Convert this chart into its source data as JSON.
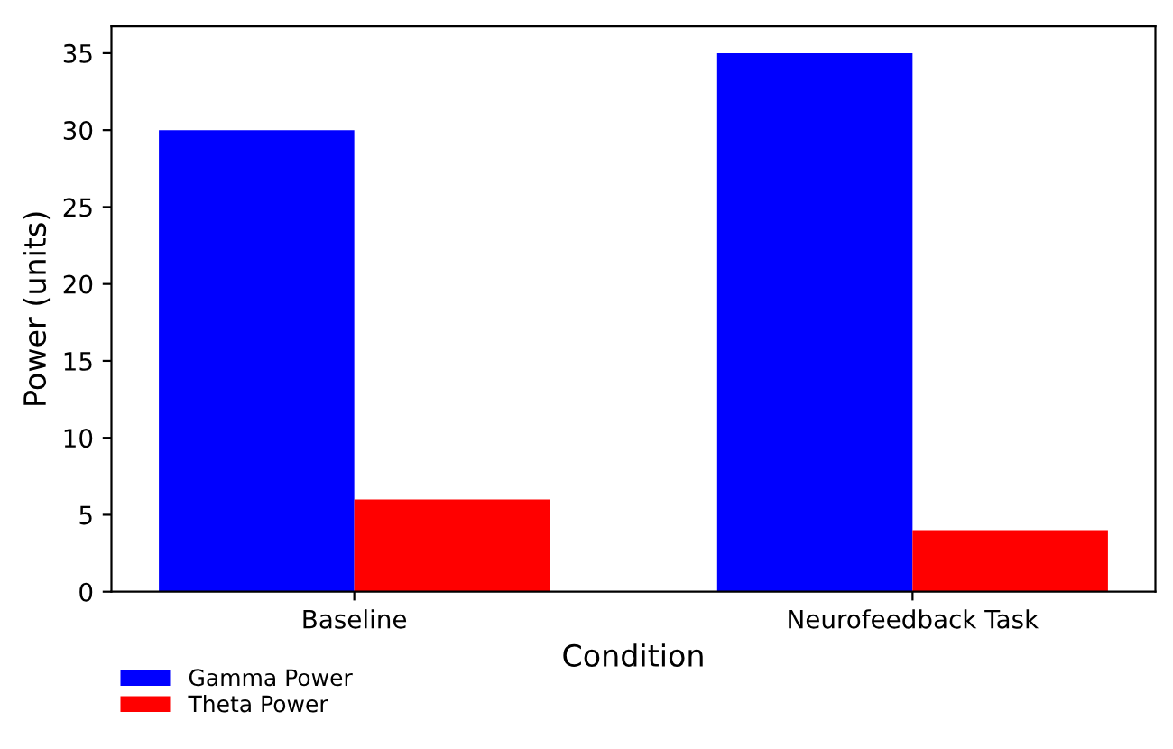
{
  "chart_data": {
    "type": "bar",
    "xlabel": "Condition",
    "ylabel": "Power (units)",
    "categories": [
      "Baseline",
      "Neurofeedback Task"
    ],
    "series": [
      {
        "name": "Gamma Power",
        "color": "#0000ff",
        "values": [
          30,
          35
        ]
      },
      {
        "name": "Theta Power",
        "color": "#ff0000",
        "values": [
          6,
          4
        ]
      }
    ],
    "ylim": [
      0,
      36.75
    ],
    "yticks": [
      0,
      5,
      10,
      15,
      20,
      25,
      30,
      35
    ],
    "grid": false,
    "legend": "bottom left"
  }
}
